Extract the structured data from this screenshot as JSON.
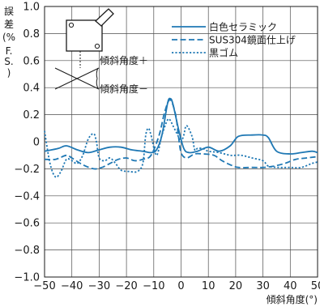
{
  "chart_data": {
    "type": "line",
    "xlabel": "傾斜角度(°)",
    "ylabel": [
      "誤",
      "差",
      "(%",
      "F.",
      "S.",
      ")"
    ],
    "xlim": [
      -50,
      50
    ],
    "ylim": [
      -1.0,
      1.0
    ],
    "xticks": [
      -50,
      -40,
      -30,
      -20,
      -10,
      0,
      10,
      20,
      30,
      40,
      50
    ],
    "xtick_labels": [
      "−50",
      "−40",
      "−30",
      "−20",
      "−10",
      "0",
      "10",
      "20",
      "30",
      "40",
      "50"
    ],
    "yticks": [
      1.0,
      0.8,
      0.6,
      0.4,
      0.2,
      0,
      -0.2,
      -0.4,
      -0.6,
      -0.8,
      -1.0
    ],
    "ytick_labels": [
      "1.0",
      "0.8",
      "0.6",
      "0.4",
      "0.2",
      "0",
      "−0.2",
      "−0.4",
      "−0.6",
      "−0.8",
      "−1.0"
    ],
    "grid": true,
    "legend_position": "top-right",
    "series": [
      {
        "name": "白色セラミック",
        "style": "solid",
        "color": "#1f78b4",
        "points": [
          [
            -50,
            -0.07
          ],
          [
            -45,
            -0.05
          ],
          [
            -42,
            -0.03
          ],
          [
            -38,
            -0.06
          ],
          [
            -34,
            -0.08
          ],
          [
            -30,
            -0.06
          ],
          [
            -26,
            -0.04
          ],
          [
            -22,
            -0.04
          ],
          [
            -18,
            -0.06
          ],
          [
            -14,
            -0.07
          ],
          [
            -11,
            -0.08
          ],
          [
            -9,
            -0.06
          ],
          [
            -7,
            0.05
          ],
          [
            -5,
            0.28
          ],
          [
            -4,
            0.32
          ],
          [
            -3,
            0.28
          ],
          [
            -1,
            0.1
          ],
          [
            1,
            -0.05
          ],
          [
            3,
            -0.08
          ],
          [
            6,
            -0.07
          ],
          [
            10,
            -0.04
          ],
          [
            14,
            -0.07
          ],
          [
            18,
            -0.03
          ],
          [
            21,
            0.04
          ],
          [
            26,
            0.05
          ],
          [
            30,
            0.05
          ],
          [
            32,
            0.03
          ],
          [
            35,
            -0.07
          ],
          [
            40,
            -0.09
          ],
          [
            44,
            -0.08
          ],
          [
            48,
            -0.07
          ],
          [
            50,
            -0.08
          ]
        ]
      },
      {
        "name": "SUS304鏡面仕上げ",
        "style": "dashed",
        "color": "#1f78b4",
        "points": [
          [
            -50,
            -0.13
          ],
          [
            -46,
            -0.13
          ],
          [
            -42,
            -0.1
          ],
          [
            -40,
            -0.12
          ],
          [
            -36,
            -0.17
          ],
          [
            -32,
            -0.2
          ],
          [
            -29,
            -0.19
          ],
          [
            -26,
            -0.16
          ],
          [
            -23,
            -0.13
          ],
          [
            -20,
            -0.12
          ],
          [
            -17,
            -0.14
          ],
          [
            -14,
            -0.13
          ],
          [
            -11,
            -0.1
          ],
          [
            -8,
            0.05
          ],
          [
            -6,
            0.22
          ],
          [
            -4,
            0.31
          ],
          [
            -2,
            0.2
          ],
          [
            -1,
            0.05
          ],
          [
            0,
            -0.08
          ],
          [
            2,
            -0.12
          ],
          [
            5,
            -0.09
          ],
          [
            8,
            -0.09
          ],
          [
            12,
            -0.1
          ],
          [
            15,
            -0.14
          ],
          [
            18,
            -0.17
          ],
          [
            21,
            -0.19
          ],
          [
            26,
            -0.19
          ],
          [
            30,
            -0.19
          ],
          [
            34,
            -0.18
          ],
          [
            38,
            -0.16
          ],
          [
            42,
            -0.13
          ],
          [
            46,
            -0.12
          ],
          [
            50,
            -0.11
          ]
        ]
      },
      {
        "name": "黒ゴム",
        "style": "dotted",
        "color": "#1f78b4",
        "points": [
          [
            -50,
            0.08
          ],
          [
            -48,
            -0.16
          ],
          [
            -46,
            -0.26
          ],
          [
            -44,
            -0.22
          ],
          [
            -42,
            -0.13
          ],
          [
            -40,
            -0.14
          ],
          [
            -38,
            -0.16
          ],
          [
            -36,
            -0.1
          ],
          [
            -34,
            0.02
          ],
          [
            -32,
            0.06
          ],
          [
            -31,
            0.0
          ],
          [
            -30,
            -0.12
          ],
          [
            -28,
            -0.14
          ],
          [
            -26,
            -0.12
          ],
          [
            -24,
            -0.16
          ],
          [
            -22,
            -0.21
          ],
          [
            -19,
            -0.22
          ],
          [
            -16,
            -0.22
          ],
          [
            -14,
            -0.16
          ],
          [
            -13,
            0.04
          ],
          [
            -12,
            0.1
          ],
          [
            -11,
            0.05
          ],
          [
            -9,
            -0.1
          ],
          [
            -7,
            0.05
          ],
          [
            -5,
            0.16
          ],
          [
            -4,
            0.16
          ],
          [
            -3,
            0.12
          ],
          [
            -1,
            0.04
          ],
          [
            0,
            0.0
          ],
          [
            1,
            0.05
          ],
          [
            2,
            0.12
          ],
          [
            4,
            0.04
          ],
          [
            5,
            -0.06
          ],
          [
            6,
            -0.05
          ],
          [
            8,
            -0.05
          ],
          [
            10,
            -0.07
          ],
          [
            14,
            -0.08
          ],
          [
            18,
            -0.1
          ],
          [
            22,
            -0.1
          ],
          [
            26,
            -0.12
          ],
          [
            30,
            -0.14
          ],
          [
            32,
            -0.18
          ],
          [
            36,
            -0.19
          ],
          [
            40,
            -0.19
          ],
          [
            44,
            -0.19
          ],
          [
            48,
            -0.16
          ],
          [
            50,
            -0.15
          ]
        ]
      }
    ]
  },
  "inset": {
    "label_plus": "傾斜角度＋",
    "label_minus": "傾斜角度－"
  }
}
